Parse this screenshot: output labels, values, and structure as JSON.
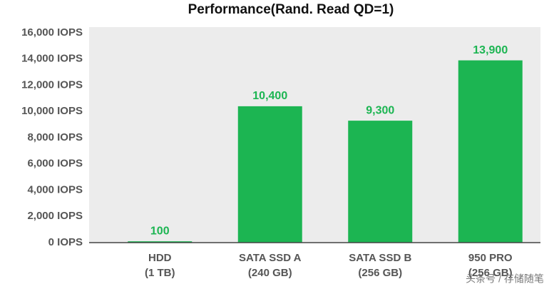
{
  "chart_data": {
    "type": "bar",
    "title": "Performance(Rand. Read QD=1)",
    "categories": [
      "HDD\n(1 TB)",
      "SATA SSD A\n(240 GB)",
      "SATA SSD B\n(256 GB)",
      "950 PRO\n(256 GB)"
    ],
    "values": [
      100,
      10400,
      9300,
      13900
    ],
    "value_labels": [
      "100",
      "10,400",
      "9,300",
      "13,900"
    ],
    "color": "#1cb552",
    "ylim": [
      0,
      16000
    ],
    "yticks": [
      {
        "value": 0,
        "label": "0 IOPS"
      },
      {
        "value": 2000,
        "label": "2,000 IOPS"
      },
      {
        "value": 4000,
        "label": "4,000 IOPS"
      },
      {
        "value": 6000,
        "label": "6,000 IOPS"
      },
      {
        "value": 8000,
        "label": "8,000 IOPS"
      },
      {
        "value": 10000,
        "label": "10,000 IOPS"
      },
      {
        "value": 12000,
        "label": "12,000 IOPS"
      },
      {
        "value": 14000,
        "label": "14,000 IOPS"
      },
      {
        "value": 16000,
        "label": "16,000 IOPS"
      }
    ],
    "grid": false
  },
  "watermark": "头条号 / 存储随笔"
}
